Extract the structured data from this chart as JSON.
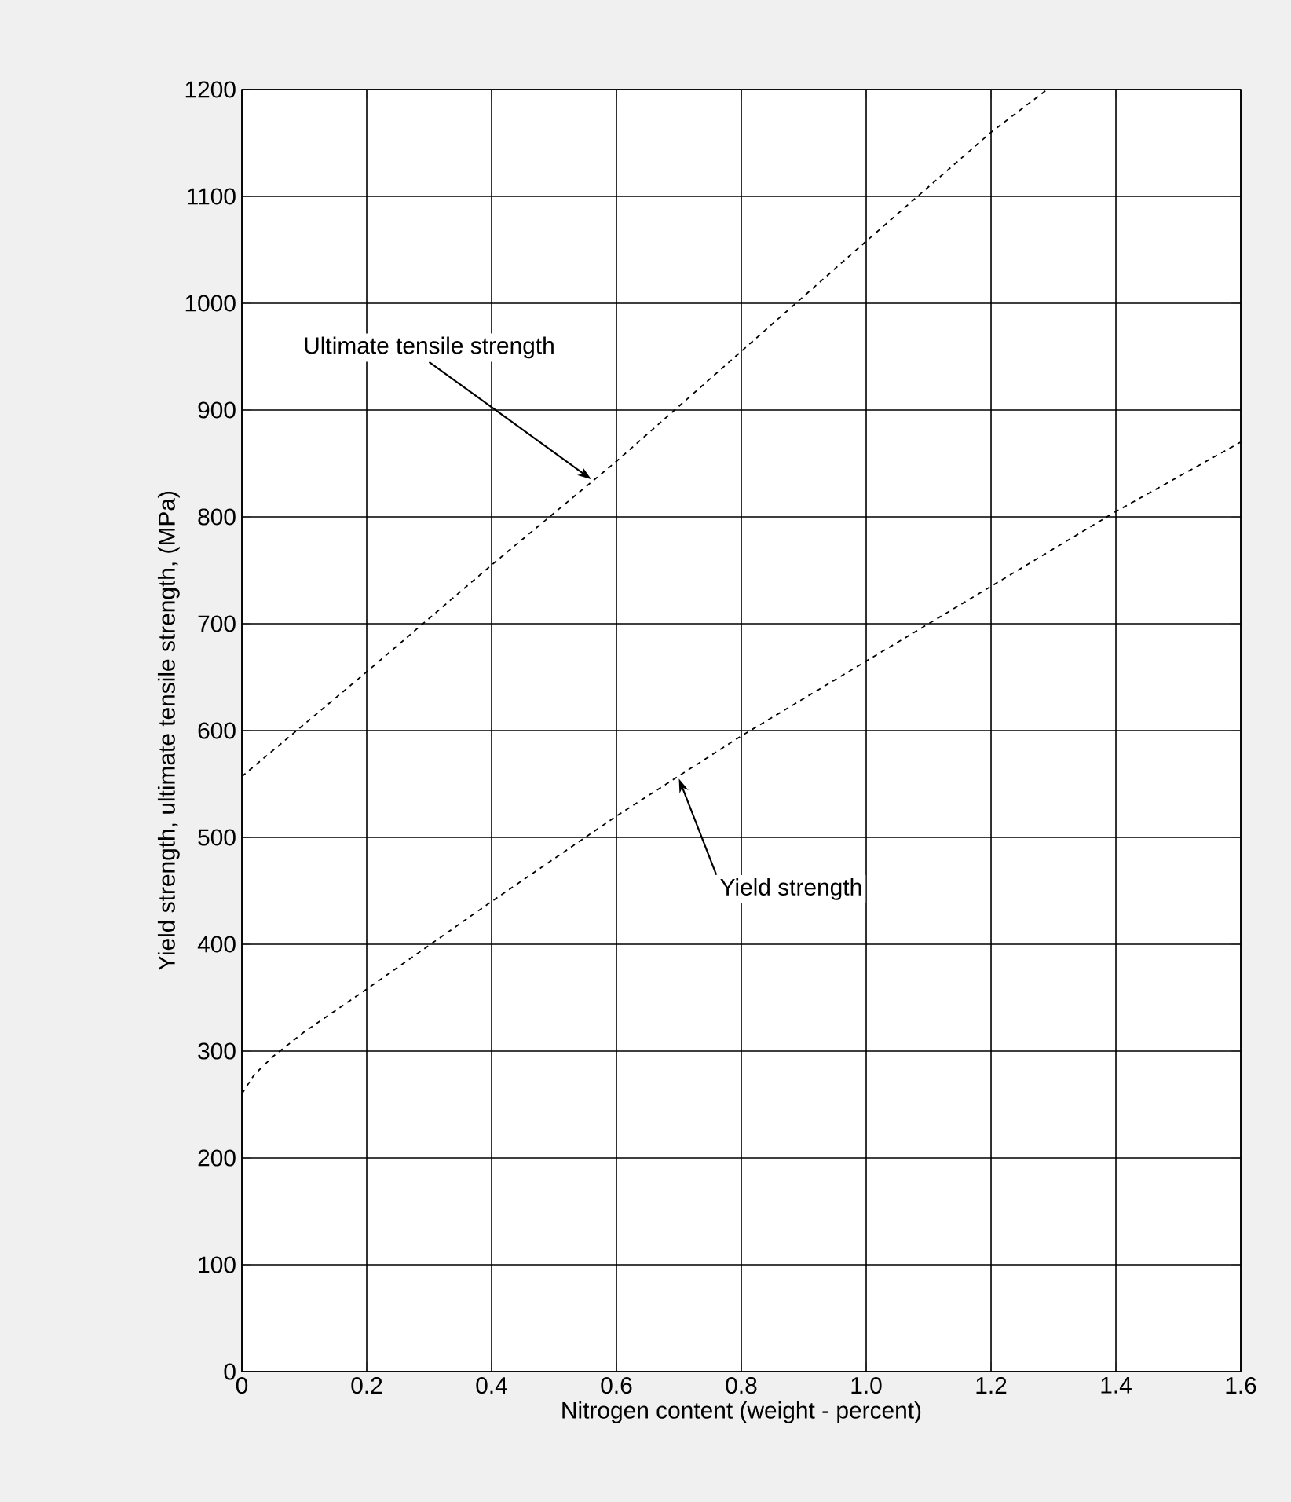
{
  "chart_data": {
    "type": "line",
    "xlabel": "Nitrogen content (weight - percent)",
    "ylabel": "Yield strength, ultimate tensile strength, (MPa)",
    "xlim": [
      0,
      1.6
    ],
    "xticks": [
      0,
      0.2,
      0.4,
      0.6,
      0.8,
      {
        "value": 1,
        "label": "1.0"
      },
      1.2,
      1.4,
      1.6
    ],
    "ylim": [
      0,
      1200
    ],
    "yticks": [
      0,
      100,
      200,
      300,
      400,
      500,
      600,
      700,
      800,
      900,
      1000,
      1100,
      1200
    ],
    "grid": true,
    "line_style": "dashed",
    "marker": "none",
    "series": [
      {
        "color": "#000000",
        "x": [
          0,
          0.2,
          0.4,
          0.6,
          0.8,
          1.0,
          1.2,
          1.29
        ],
        "values": [
          557,
          655,
          755,
          852,
          955,
          1058,
          1160,
          1200
        ]
      },
      {
        "color": "#000000",
        "x": [
          0,
          0.02,
          0.05,
          0.1,
          0.2,
          0.4,
          0.6,
          0.8,
          1.0,
          1.2,
          1.4,
          1.6
        ],
        "values": [
          260,
          278,
          295,
          318,
          358,
          440,
          520,
          595,
          665,
          735,
          805,
          870
        ]
      }
    ],
    "annotations": [
      {
        "text": "Ultimate tensile strength",
        "x": 0.56,
        "y": 835
      },
      {
        "text": "Yield strength",
        "x": 0.7,
        "y": 555
      }
    ]
  }
}
